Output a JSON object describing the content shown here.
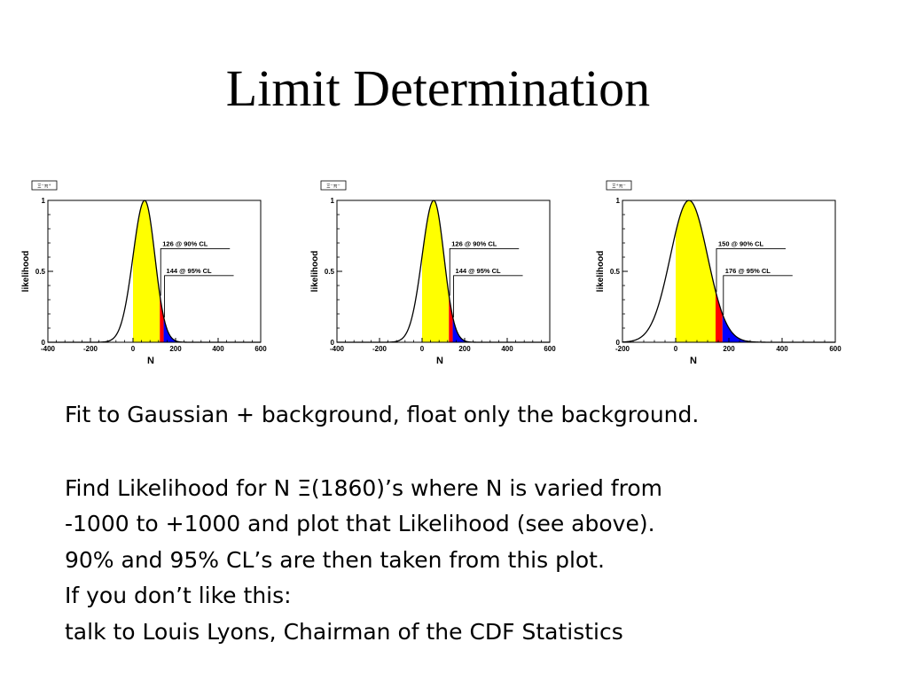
{
  "slide": {
    "title": "Limit Determination",
    "text": {
      "line1": "Fit to Gaussian + background, float only the background.",
      "line2": "Find Likelihood for N Ξ(1860)’s where N is varied from",
      "line3": "-1000 to +1000 and plot that Likelihood (see above).",
      "line4": "90% and 95% CL’s are then taken from this plot.",
      "line5": "If you don’t like this:",
      "line6": "talk to Louis Lyons, Chairman of the CDF Statistics"
    }
  },
  "colors": {
    "fill_90": "#ffff00",
    "fill_95": "#ff0000",
    "fill_tail": "#0000ff",
    "curve": "#000000"
  },
  "chart_data": [
    {
      "type": "area",
      "tag": "Ξ⁻π⁺",
      "xlabel": "N",
      "ylabel": "likelihood",
      "xlim": [
        -400,
        600
      ],
      "ylim": [
        0,
        1
      ],
      "xticks": [
        -400,
        -200,
        0,
        200,
        400,
        600
      ],
      "yticks": [
        0,
        0.5,
        1
      ],
      "mu": 55,
      "sigma_left": 55,
      "sigma_right": 48,
      "fill_start": 0,
      "cl90": 126,
      "cl95": 144,
      "annotations": [
        "126 @ 90% CL",
        "144 @ 95% CL"
      ]
    },
    {
      "type": "area",
      "tag": "Ξ⁻π⁻",
      "xlabel": "N",
      "ylabel": "likelihood",
      "xlim": [
        -400,
        600
      ],
      "ylim": [
        0,
        1
      ],
      "xticks": [
        -400,
        -200,
        0,
        200,
        400,
        600
      ],
      "yticks": [
        0,
        0.5,
        1
      ],
      "mu": 55,
      "sigma_left": 55,
      "sigma_right": 48,
      "fill_start": 0,
      "cl90": 126,
      "cl95": 144,
      "annotations": [
        "126 @ 90% CL",
        "144 @ 95% CL"
      ]
    },
    {
      "type": "area",
      "tag": "Ξ⁺π⁻",
      "xlabel": "N",
      "ylabel": "likelihood",
      "xlim": [
        -200,
        600
      ],
      "ylim": [
        0,
        1
      ],
      "xticks": [
        -200,
        0,
        200,
        400,
        600
      ],
      "yticks": [
        0,
        0.5,
        1
      ],
      "mu": 50,
      "sigma_left": 70,
      "sigma_right": 70,
      "fill_start": 0,
      "cl90": 150,
      "cl95": 176,
      "annotations": [
        "150 @ 90% CL",
        "176 @ 95% CL"
      ]
    }
  ]
}
